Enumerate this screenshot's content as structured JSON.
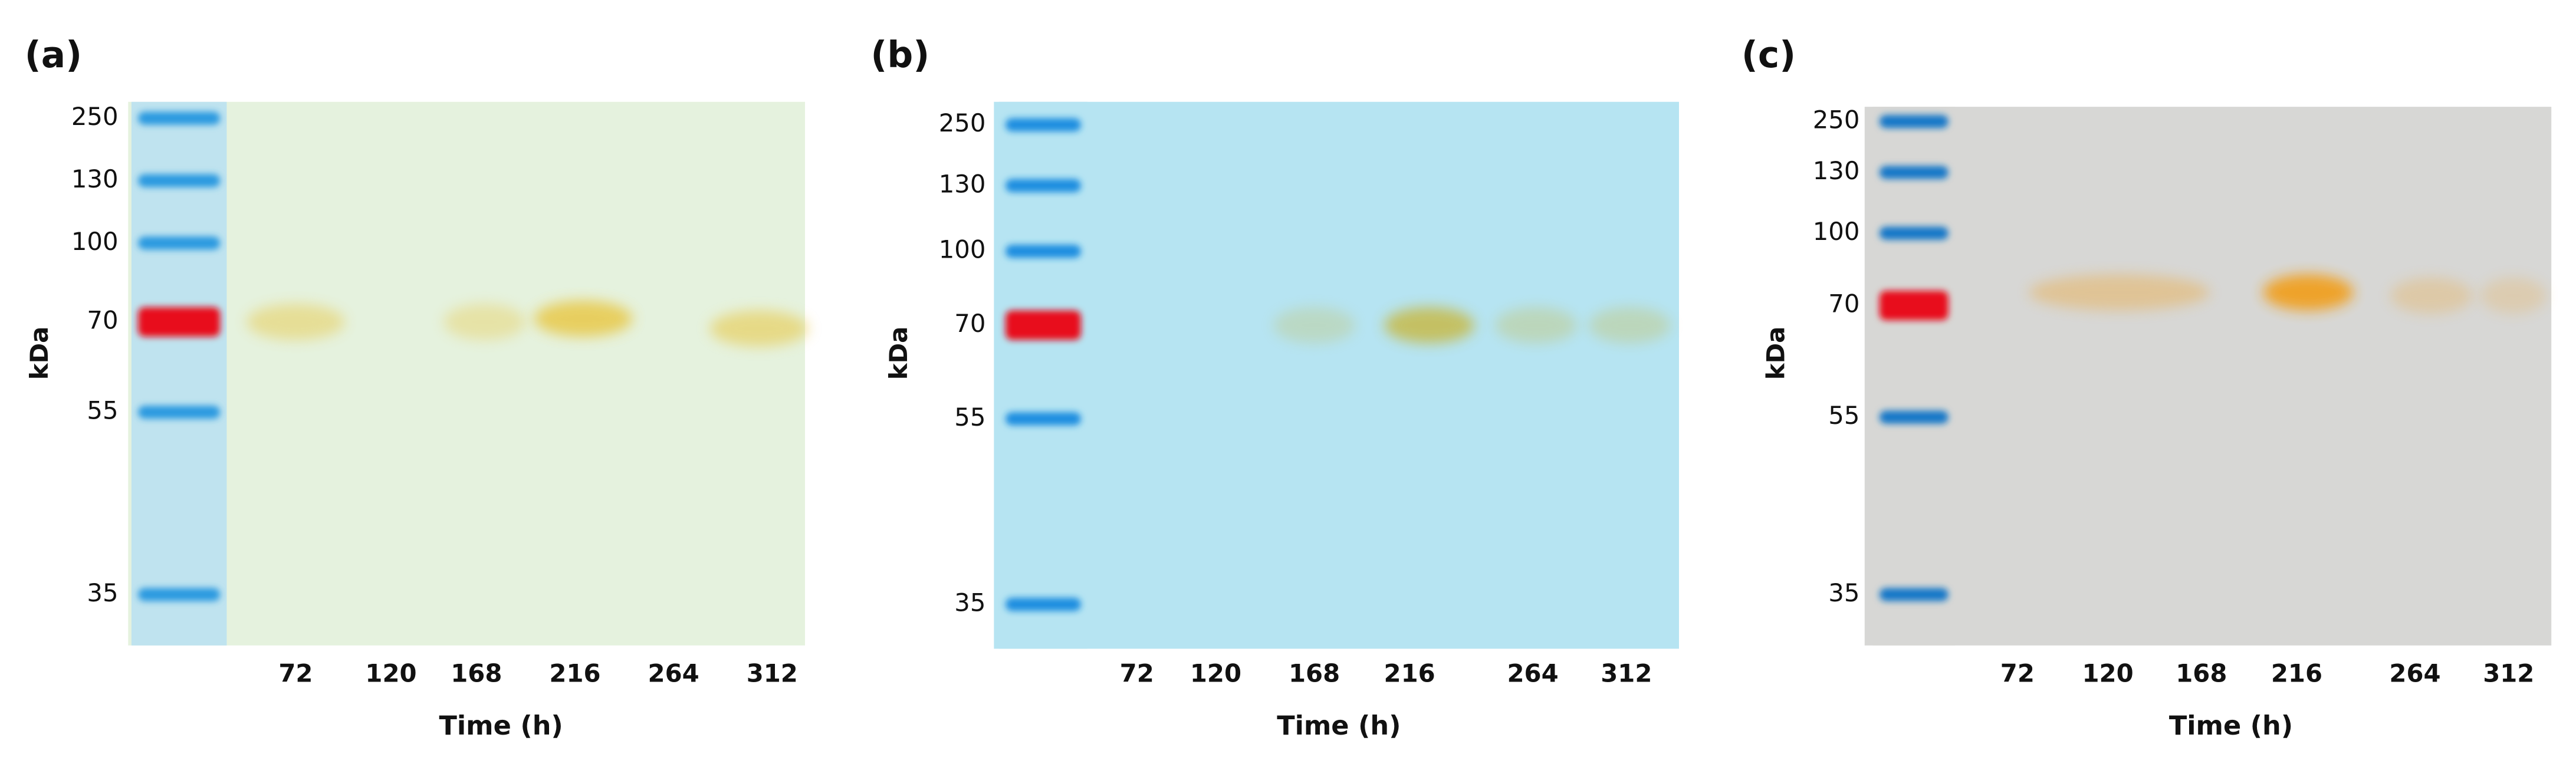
{
  "panels": [
    {
      "label": "(a)",
      "y_axis_label": "kDa",
      "markers": [
        "250",
        "130",
        "100",
        "70",
        "55",
        "35"
      ],
      "lanes": [
        "72",
        "120",
        "168",
        "216",
        "264",
        "312"
      ],
      "x_axis_label": "Time (h)"
    },
    {
      "label": "(b)",
      "y_axis_label": "kDa",
      "markers": [
        "250",
        "130",
        "100",
        "70",
        "55",
        "35"
      ],
      "lanes": [
        "72",
        "120",
        "168",
        "216",
        "264",
        "312"
      ],
      "x_axis_label": "Time (h)"
    },
    {
      "label": "(c)",
      "y_axis_label": "kDa",
      "markers": [
        "250",
        "130",
        "100",
        "70",
        "55",
        "35"
      ],
      "lanes": [
        "72",
        "120",
        "168",
        "216",
        "264",
        "312"
      ],
      "x_axis_label": "Time (h)"
    }
  ]
}
